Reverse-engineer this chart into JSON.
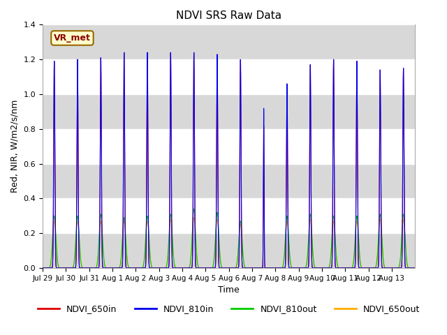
{
  "title": "NDVI SRS Raw Data",
  "xlabel": "Time",
  "ylabel": "Red, NIR, W/m2/s/nm",
  "ylim": [
    0,
    1.4
  ],
  "figsize": [
    6.4,
    4.8
  ],
  "dpi": 100,
  "bg_color": "#ffffff",
  "plot_bg_color": "#ffffff",
  "series_colors": {
    "NDVI_650in": "#dd0000",
    "NDVI_810in": "#0000ee",
    "NDVI_810out": "#00cc00",
    "NDVI_650out": "#ffaa00"
  },
  "xtick_labels": [
    "Jul 29",
    "Jul 30",
    "Jul 31",
    "Aug 1",
    "Aug 2",
    "Aug 3",
    "Aug 4",
    "Aug 5",
    "Aug 6",
    "Aug 7",
    "Aug 8",
    "Aug 9",
    "Aug 10",
    "Aug 11",
    "Aug 12",
    "Aug 13"
  ],
  "annotation_text": "VR_met",
  "gray_band_color": "#d8d8d8",
  "day_peaks": [
    [
      0,
      1.19,
      1.19,
      0.3,
      0.27
    ],
    [
      1,
      1.19,
      1.2,
      0.3,
      0.27
    ],
    [
      2,
      1.21,
      1.21,
      0.31,
      0.27
    ],
    [
      3,
      1.24,
      1.24,
      0.29,
      0.27
    ],
    [
      4,
      1.24,
      1.24,
      0.3,
      0.27
    ],
    [
      5,
      1.24,
      1.24,
      0.31,
      0.28
    ],
    [
      6,
      1.24,
      1.24,
      0.34,
      0.29
    ],
    [
      7,
      1.23,
      1.23,
      0.32,
      0.28
    ],
    [
      8,
      1.2,
      1.2,
      0.27,
      0.25
    ],
    [
      9,
      0.82,
      0.92,
      0.22,
      0.2
    ],
    [
      10,
      1.06,
      1.06,
      0.3,
      0.27
    ],
    [
      11,
      1.17,
      1.17,
      0.31,
      0.28
    ],
    [
      12,
      1.2,
      1.2,
      0.3,
      0.27
    ],
    [
      13,
      1.19,
      1.19,
      0.3,
      0.27
    ],
    [
      14,
      1.14,
      1.14,
      0.31,
      0.28
    ],
    [
      15,
      1.15,
      1.15,
      0.31,
      0.28
    ]
  ]
}
